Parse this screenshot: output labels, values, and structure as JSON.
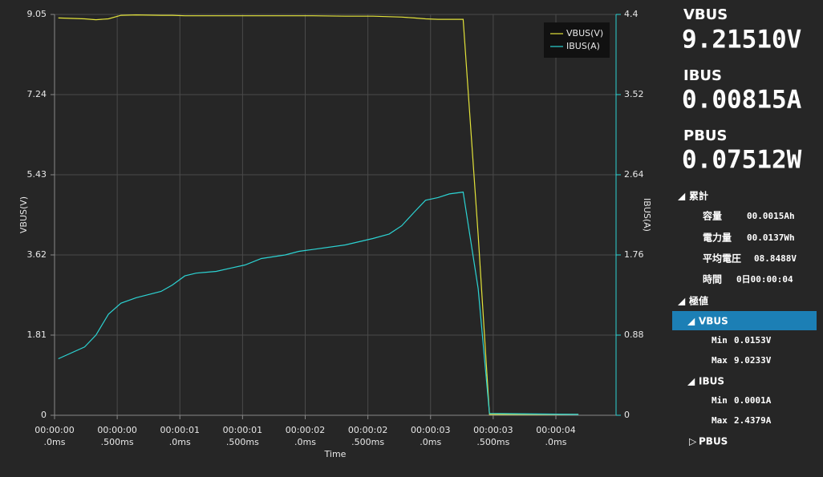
{
  "chart_data": {
    "type": "line",
    "x_label": "Time",
    "y_label": "VBUS(V)",
    "y2_label": "IBUS(A)",
    "x": [
      0.03,
      0.24,
      0.33,
      0.43,
      0.53,
      0.65,
      0.85,
      0.94,
      1.04,
      1.13,
      1.29,
      1.42,
      1.52,
      1.65,
      1.84,
      1.95,
      2.06,
      2.32,
      2.54,
      2.67,
      2.77,
      2.87,
      2.96,
      3.06,
      3.15,
      3.26,
      3.38,
      3.47,
      4.18
    ],
    "series": [
      {
        "name": "VBUS(V)",
        "color": "#e3e33a",
        "values": [
          8.97,
          8.95,
          8.93,
          8.95,
          9.03,
          9.04,
          9.03,
          9.03,
          9.02,
          9.02,
          9.02,
          9.02,
          9.02,
          9.02,
          9.02,
          9.02,
          9.02,
          9.01,
          9.01,
          9.0,
          8.99,
          8.97,
          8.95,
          8.94,
          8.94,
          8.94,
          4.07,
          0.02,
          0.02
        ]
      },
      {
        "name": "IBUS(A)",
        "color": "#2cd3d3",
        "axis": "y2",
        "values": [
          0.62,
          0.75,
          0.88,
          1.11,
          1.23,
          1.29,
          1.36,
          1.43,
          1.53,
          1.56,
          1.58,
          1.62,
          1.65,
          1.72,
          1.76,
          1.8,
          1.82,
          1.87,
          1.94,
          1.99,
          2.08,
          2.23,
          2.36,
          2.39,
          2.43,
          2.45,
          1.39,
          0.02,
          0.01
        ]
      }
    ],
    "xlim": [
      0,
      4.48
    ],
    "xticks": [
      {
        "value": 0,
        "label": [
          "00:00:00",
          ".0ms"
        ]
      },
      {
        "value": 0.5,
        "label": [
          "00:00:00",
          ".500ms"
        ]
      },
      {
        "value": 1,
        "label": [
          "00:00:01",
          ".0ms"
        ]
      },
      {
        "value": 1.5,
        "label": [
          "00:00:01",
          ".500ms"
        ]
      },
      {
        "value": 2,
        "label": [
          "00:00:02",
          ".0ms"
        ]
      },
      {
        "value": 2.5,
        "label": [
          "00:00:02",
          ".500ms"
        ]
      },
      {
        "value": 3,
        "label": [
          "00:00:03",
          ".0ms"
        ]
      },
      {
        "value": 3.5,
        "label": [
          "00:00:03",
          ".500ms"
        ]
      },
      {
        "value": 4,
        "label": [
          "00:00:04",
          ".0ms"
        ]
      }
    ],
    "ylim": [
      0,
      9.05
    ],
    "yticks": [
      0,
      1.81,
      3.62,
      5.43,
      7.24,
      9.05
    ],
    "y2lim": [
      0,
      4.4
    ],
    "y2ticks": [
      0,
      0.88,
      1.76,
      2.64,
      3.52,
      4.4
    ],
    "grid": true,
    "legend": "top-right"
  },
  "readings": [
    {
      "name": "VBUS",
      "value": "9.21510V"
    },
    {
      "name": "IBUS",
      "value": "0.00815A"
    },
    {
      "name": "PBUS",
      "value": "0.07512W"
    }
  ],
  "tree": {
    "accumulated": {
      "label": "累計",
      "rows": [
        {
          "name": "容量",
          "value": "00.0015Ah"
        },
        {
          "name": "電力量",
          "value": "00.0137Wh"
        },
        {
          "name": "平均電圧",
          "value": "08.8488V"
        },
        {
          "name": "時間",
          "value": "0日00:00:04"
        }
      ]
    },
    "extremes": {
      "label": "極値",
      "groups": [
        {
          "name": "VBUS",
          "rows": [
            {
              "name": "Min",
              "value": "0.0153V"
            },
            {
              "name": "Max",
              "value": "9.0233V"
            }
          ]
        },
        {
          "name": "IBUS",
          "rows": [
            {
              "name": "Min",
              "value": "0.0001A"
            },
            {
              "name": "Max",
              "value": "2.4379A"
            }
          ]
        },
        {
          "name": "PBUS",
          "rows": []
        }
      ]
    }
  }
}
